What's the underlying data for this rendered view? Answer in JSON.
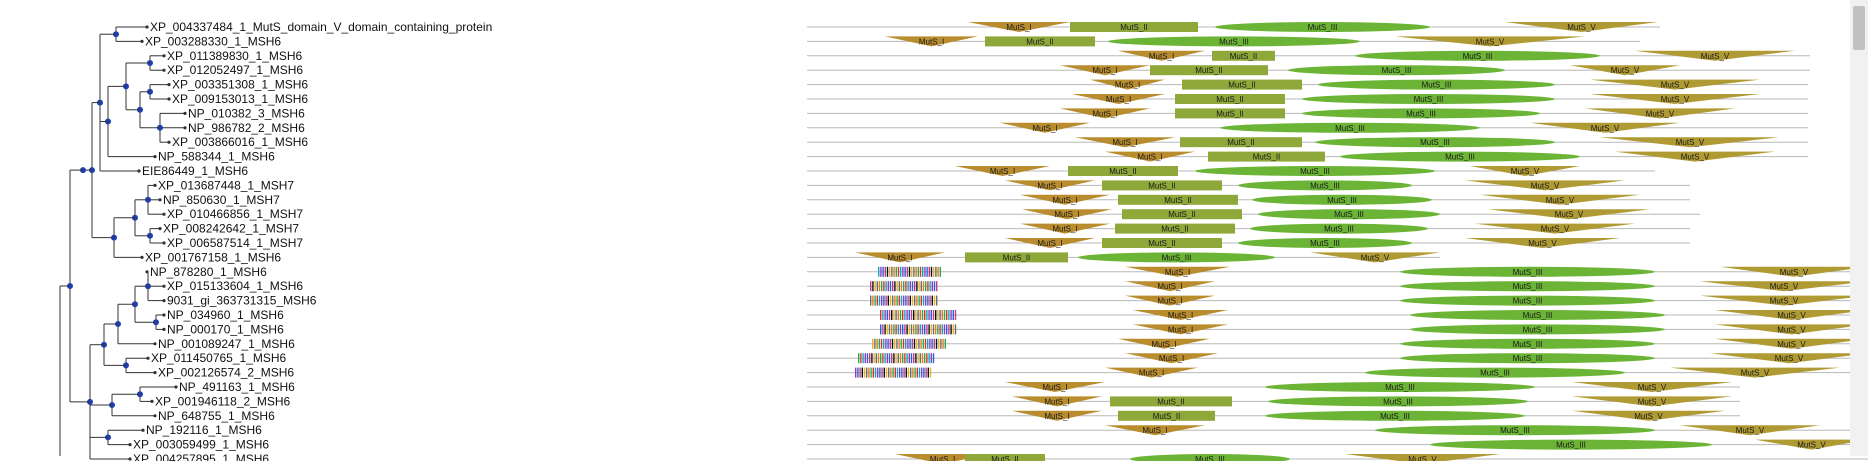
{
  "colors": {
    "tree_line": "#333333",
    "node": "#1f3fb0",
    "backbone": "#b8b8b8",
    "MutS_I": "#b98d2e",
    "MutS_II": "#8ea83a",
    "MutS_III": "#6bb435",
    "MutS_V": "#b09a33"
  },
  "rows": [
    {
      "label": "XP_004337484_1_MutS_domain_V_domain_containing_protein",
      "end": 1660,
      "doms": [
        [
          "MutS_I",
          968,
          1070,
          "tri"
        ],
        [
          "MutS_II",
          1070,
          1198,
          "rect"
        ],
        [
          "MutS_III",
          1215,
          1430,
          "ell"
        ],
        [
          "MutS_V",
          1505,
          1658,
          "tri"
        ]
      ]
    },
    {
      "label": "XP_003288330_1_MSH6",
      "end": 1640,
      "doms": [
        [
          "MutS_I",
          885,
          978,
          "tri"
        ],
        [
          "MutS_II",
          985,
          1095,
          "rect"
        ],
        [
          "MutS_III",
          1108,
          1360,
          "ell"
        ],
        [
          "MutS_V",
          1395,
          1585,
          "tri"
        ]
      ]
    },
    {
      "label": "XP_011389830_1_MSH6",
      "end": 1810,
      "doms": [
        [
          "MutS_I",
          1118,
          1205,
          "tri"
        ],
        [
          "MutS_II",
          1212,
          1275,
          "rect"
        ],
        [
          "MutS_III",
          1355,
          1600,
          "ell"
        ],
        [
          "MutS_V",
          1635,
          1795,
          "tri"
        ]
      ]
    },
    {
      "label": "XP_012052497_1_MSH6",
      "end": 1810,
      "doms": [
        [
          "MutS_I",
          1060,
          1150,
          "tri"
        ],
        [
          "MutS_II",
          1150,
          1268,
          "rect"
        ],
        [
          "MutS_III",
          1288,
          1505,
          "ell"
        ],
        [
          "MutS_V",
          1570,
          1680,
          "tri"
        ]
      ]
    },
    {
      "label": "XP_003351308_1_MSH6",
      "end": 1808,
      "doms": [
        [
          "MutS_I",
          1090,
          1165,
          "tri"
        ],
        [
          "MutS_II",
          1182,
          1302,
          "rect"
        ],
        [
          "MutS_III",
          1318,
          1555,
          "ell"
        ],
        [
          "MutS_V",
          1590,
          1760,
          "tri"
        ]
      ]
    },
    {
      "label": "XP_009153013_1_MSH6",
      "end": 1808,
      "doms": [
        [
          "MutS_I",
          1072,
          1165,
          "tri"
        ],
        [
          "MutS_II",
          1175,
          1285,
          "rect"
        ],
        [
          "MutS_III",
          1302,
          1555,
          "ell"
        ],
        [
          "MutS_V",
          1590,
          1760,
          "tri"
        ]
      ]
    },
    {
      "label": "NP_010382_3_MSH6",
      "end": 1808,
      "doms": [
        [
          "MutS_I",
          1060,
          1150,
          "tri"
        ],
        [
          "MutS_II",
          1175,
          1285,
          "rect"
        ],
        [
          "MutS_III",
          1302,
          1540,
          "ell"
        ],
        [
          "MutS_V",
          1585,
          1735,
          "tri"
        ]
      ]
    },
    {
      "label": "NP_986782_2_MSH6",
      "end": 1808,
      "doms": [
        [
          "MutS_I",
          1000,
          1090,
          "tri"
        ],
        [
          "MutS_III",
          1220,
          1480,
          "ell"
        ],
        [
          "MutS_V",
          1530,
          1680,
          "tri"
        ]
      ]
    },
    {
      "label": "XP_003866016_1_MSH6",
      "end": 1808,
      "doms": [
        [
          "MutS_I",
          1075,
          1175,
          "tri"
        ],
        [
          "MutS_II",
          1180,
          1302,
          "rect"
        ],
        [
          "MutS_III",
          1315,
          1555,
          "ell"
        ],
        [
          "MutS_V",
          1600,
          1780,
          "tri"
        ]
      ]
    },
    {
      "label": "NP_588344_1_MSH6",
      "end": 1808,
      "doms": [
        [
          "MutS_I",
          1105,
          1195,
          "tri"
        ],
        [
          "MutS_II",
          1208,
          1325,
          "rect"
        ],
        [
          "MutS_III",
          1340,
          1580,
          "ell"
        ],
        [
          "MutS_V",
          1615,
          1775,
          "tri"
        ]
      ]
    },
    {
      "label": "EIE86449_1_MSH6",
      "end": 1655,
      "doms": [
        [
          "MutS_I",
          955,
          1050,
          "tri"
        ],
        [
          "MutS_II",
          1068,
          1178,
          "rect"
        ],
        [
          "MutS_III",
          1195,
          1435,
          "ell"
        ],
        [
          "MutS_V",
          1470,
          1580,
          "tri"
        ]
      ]
    },
    {
      "label": "XP_013687448_1_MSH7",
      "end": 1690,
      "doms": [
        [
          "MutS_I",
          1005,
          1095,
          "tri"
        ],
        [
          "MutS_II",
          1102,
          1222,
          "rect"
        ],
        [
          "MutS_III",
          1238,
          1412,
          "ell"
        ],
        [
          "MutS_V",
          1465,
          1625,
          "tri"
        ]
      ]
    },
    {
      "label": "NP_850630_1_MSH7",
      "end": 1690,
      "doms": [
        [
          "MutS_I",
          1020,
          1110,
          "tri"
        ],
        [
          "MutS_II",
          1118,
          1238,
          "rect"
        ],
        [
          "MutS_III",
          1252,
          1432,
          "ell"
        ],
        [
          "MutS_V",
          1480,
          1640,
          "tri"
        ]
      ]
    },
    {
      "label": "XP_010466856_1_MSH7",
      "end": 1700,
      "doms": [
        [
          "MutS_I",
          1022,
          1112,
          "tri"
        ],
        [
          "MutS_II",
          1122,
          1242,
          "rect"
        ],
        [
          "MutS_III",
          1258,
          1440,
          "ell"
        ],
        [
          "MutS_V",
          1488,
          1650,
          "tri"
        ]
      ]
    },
    {
      "label": "XP_008242642_1_MSH7",
      "end": 1690,
      "doms": [
        [
          "MutS_I",
          1020,
          1110,
          "tri"
        ],
        [
          "MutS_II",
          1115,
          1235,
          "rect"
        ],
        [
          "MutS_III",
          1250,
          1428,
          "ell"
        ],
        [
          "MutS_V",
          1475,
          1635,
          "tri"
        ]
      ]
    },
    {
      "label": "XP_006587514_1_MSH7",
      "end": 1690,
      "doms": [
        [
          "MutS_I",
          1005,
          1095,
          "tri"
        ],
        [
          "MutS_II",
          1102,
          1222,
          "rect"
        ],
        [
          "MutS_III",
          1238,
          1412,
          "ell"
        ],
        [
          "MutS_V",
          1465,
          1620,
          "tri"
        ]
      ]
    },
    {
      "label": "XP_001767158_1_MSH6",
      "end": 1440,
      "doms": [
        [
          "MutS_I",
          855,
          945,
          "tri"
        ],
        [
          "MutS_II",
          965,
          1068,
          "rect"
        ],
        [
          "MutS_III",
          1078,
          1275,
          "ell"
        ],
        [
          "MutS_V",
          1310,
          1440,
          "tri"
        ]
      ]
    },
    {
      "label": "NP_878280_1_MSH6",
      "end": 1868,
      "stripes": [
        878,
        940
      ],
      "doms": [
        [
          "MutS_I",
          1125,
          1230,
          "tri"
        ],
        [
          "MutS_III",
          1400,
          1655,
          "ell"
        ],
        [
          "MutS_V",
          1720,
          1868,
          "tri"
        ]
      ]
    },
    {
      "label": "XP_015133604_1_MSH6",
      "end": 1868,
      "stripes": [
        870,
        938
      ],
      "doms": [
        [
          "MutS_I",
          1125,
          1215,
          "tri"
        ],
        [
          "MutS_III",
          1400,
          1655,
          "ell"
        ],
        [
          "MutS_V",
          1700,
          1868,
          "tri"
        ]
      ]
    },
    {
      "label": "9031_gi_363731315_MSH6",
      "end": 1868,
      "stripes": [
        870,
        938
      ],
      "doms": [
        [
          "MutS_I",
          1125,
          1215,
          "tri"
        ],
        [
          "MutS_III",
          1400,
          1655,
          "ell"
        ],
        [
          "MutS_V",
          1700,
          1868,
          "tri"
        ]
      ]
    },
    {
      "label": "NP_034960_1_MSH6",
      "end": 1868,
      "stripes": [
        880,
        955
      ],
      "doms": [
        [
          "MutS_I",
          1133,
          1228,
          "tri"
        ],
        [
          "MutS_III",
          1410,
          1665,
          "ell"
        ],
        [
          "MutS_V",
          1715,
          1868,
          "tri"
        ]
      ]
    },
    {
      "label": "NP_000170_1_MSH6",
      "end": 1868,
      "stripes": [
        880,
        955
      ],
      "doms": [
        [
          "MutS_I",
          1133,
          1228,
          "tri"
        ],
        [
          "MutS_III",
          1410,
          1665,
          "ell"
        ],
        [
          "MutS_V",
          1715,
          1868,
          "tri"
        ]
      ]
    },
    {
      "label": "NP_001089247_1_MSH6",
      "end": 1868,
      "stripes": [
        872,
        945
      ],
      "doms": [
        [
          "MutS_I",
          1118,
          1210,
          "tri"
        ],
        [
          "MutS_III",
          1400,
          1655,
          "ell"
        ],
        [
          "MutS_V",
          1715,
          1868,
          "tri"
        ]
      ]
    },
    {
      "label": "XP_011450765_1_MSH6",
      "end": 1868,
      "stripes": [
        858,
        935
      ],
      "doms": [
        [
          "MutS_I",
          1125,
          1218,
          "tri"
        ],
        [
          "MutS_III",
          1400,
          1655,
          "ell"
        ],
        [
          "MutS_V",
          1710,
          1868,
          "tri"
        ]
      ]
    },
    {
      "label": "XP_002126574_2_MSH6",
      "end": 1868,
      "stripes": [
        855,
        930
      ],
      "doms": [
        [
          "MutS_I",
          1105,
          1198,
          "tri"
        ],
        [
          "MutS_III",
          1365,
          1625,
          "ell"
        ],
        [
          "MutS_V",
          1670,
          1840,
          "tri"
        ]
      ]
    },
    {
      "label": "NP_491163_1_MSH6",
      "end": 1740,
      "doms": [
        [
          "MutS_I",
          1005,
          1105,
          "tri"
        ],
        [
          "MutS_III",
          1265,
          1535,
          "ell"
        ],
        [
          "MutS_V",
          1572,
          1732,
          "tri"
        ]
      ]
    },
    {
      "label": "XP_001946118_2_MSH6",
      "end": 1740,
      "doms": [
        [
          "MutS_I",
          1012,
          1102,
          "tri"
        ],
        [
          "MutS_II",
          1110,
          1232,
          "rect"
        ],
        [
          "MutS_III",
          1268,
          1528,
          "ell"
        ],
        [
          "MutS_V",
          1572,
          1732,
          "tri"
        ]
      ]
    },
    {
      "label": "NP_648755_1_MSH6",
      "end": 1740,
      "doms": [
        [
          "MutS_I",
          1012,
          1102,
          "tri"
        ],
        [
          "MutS_II",
          1118,
          1215,
          "rect"
        ],
        [
          "MutS_III",
          1265,
          1525,
          "ell"
        ],
        [
          "MutS_V",
          1572,
          1725,
          "tri"
        ]
      ]
    },
    {
      "label": "NP_192116_1_MSH6",
      "end": 1868,
      "doms": [
        [
          "MutS_I",
          1105,
          1205,
          "tri"
        ],
        [
          "MutS_III",
          1375,
          1655,
          "ell"
        ],
        [
          "MutS_V",
          1680,
          1820,
          "tri"
        ]
      ]
    },
    {
      "label": "XP_003059499_1_MSH6",
      "end": 1868,
      "doms": [
        [
          "MutS_III",
          1430,
          1712,
          "ell"
        ],
        [
          "MutS_V",
          1755,
          1868,
          "tri"
        ]
      ]
    },
    {
      "label": "XP_004257895_1_MSH6",
      "end": 1868,
      "doms": [
        [
          "MutS_I",
          895,
          990,
          "tri"
        ],
        [
          "MutS_II",
          965,
          1045,
          "rect"
        ],
        [
          "MutS_III",
          1130,
          1290,
          "ell"
        ],
        [
          "MutS_V",
          1345,
          1500,
          "tri"
        ]
      ]
    }
  ]
}
